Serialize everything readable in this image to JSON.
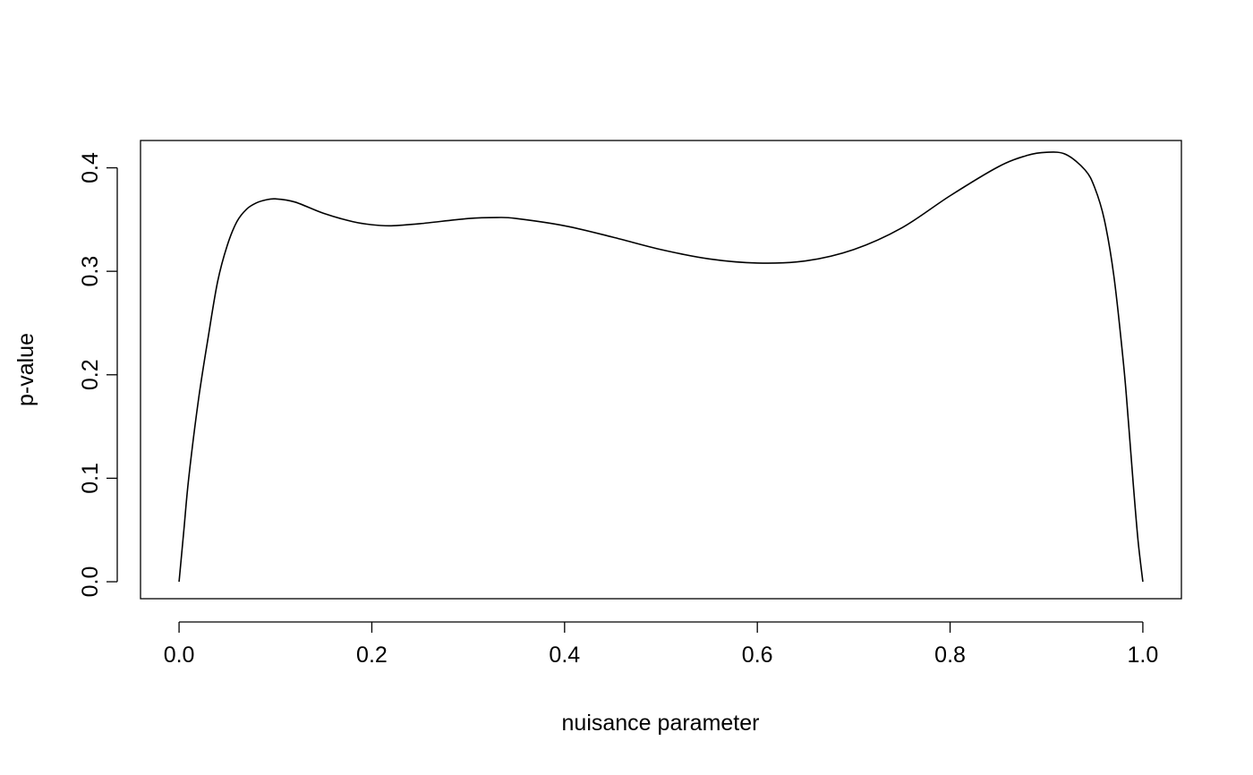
{
  "chart_data": {
    "type": "line",
    "title": "",
    "xlabel": "nuisance parameter",
    "ylabel": "p-value",
    "xlim": [
      -0.04,
      1.04
    ],
    "ylim": [
      -0.0164,
      0.4264
    ],
    "xticks": [
      0.0,
      0.2,
      0.4,
      0.6,
      0.8,
      1.0
    ],
    "xtick_labels": [
      "0.0",
      "0.2",
      "0.4",
      "0.6",
      "0.8",
      "1.0"
    ],
    "yticks": [
      0.0,
      0.1,
      0.2,
      0.3,
      0.4
    ],
    "ytick_labels": [
      "0.0",
      "0.1",
      "0.2",
      "0.3",
      "0.4"
    ],
    "grid": false,
    "legend": "none",
    "line_color": "#000000",
    "series": [
      {
        "x": [
          0.0,
          0.005,
          0.01,
          0.02,
          0.03,
          0.04,
          0.05,
          0.06,
          0.07,
          0.08,
          0.09,
          0.1,
          0.12,
          0.15,
          0.18,
          0.2,
          0.22,
          0.25,
          0.3,
          0.33,
          0.35,
          0.4,
          0.45,
          0.5,
          0.55,
          0.6,
          0.65,
          0.7,
          0.75,
          0.8,
          0.85,
          0.88,
          0.9,
          0.92,
          0.94,
          0.95,
          0.96,
          0.97,
          0.98,
          0.985,
          0.99,
          0.995,
          1.0
        ],
        "y": [
          0.0,
          0.05,
          0.1,
          0.175,
          0.235,
          0.29,
          0.325,
          0.348,
          0.36,
          0.366,
          0.369,
          0.37,
          0.367,
          0.356,
          0.348,
          0.345,
          0.344,
          0.346,
          0.351,
          0.352,
          0.351,
          0.344,
          0.333,
          0.321,
          0.312,
          0.308,
          0.31,
          0.321,
          0.342,
          0.373,
          0.401,
          0.412,
          0.415,
          0.413,
          0.398,
          0.381,
          0.35,
          0.295,
          0.21,
          0.155,
          0.095,
          0.04,
          0.0
        ]
      }
    ]
  }
}
